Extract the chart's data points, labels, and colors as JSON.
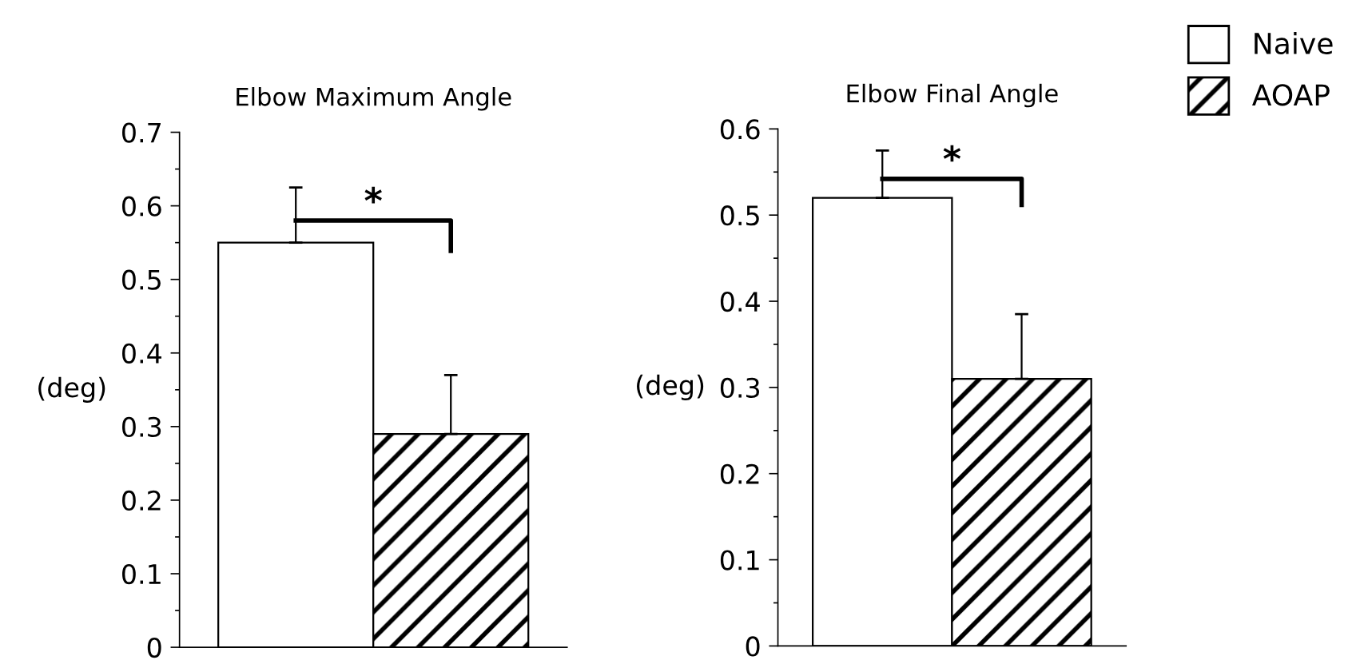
{
  "chart_data": [
    {
      "type": "bar",
      "title": "Elbow Maximum Angle",
      "ylabel": "(deg)",
      "categories": [
        null
      ],
      "series": [
        {
          "color": "#ffffff",
          "values": [
            0.55
          ],
          "errors": [
            [
              0.55,
              0.625
            ]
          ]
        },
        {
          "color": "#000000",
          "values": [
            0.29
          ],
          "errors": [
            [
              0.29,
              0.37
            ]
          ]
        }
      ],
      "ylim": [
        0,
        0.7
      ],
      "yticks": [
        0,
        0.1,
        0.2,
        0.3,
        0.4,
        0.5,
        0.6,
        0.7
      ],
      "grid": false,
      "annotations": [
        "*"
      ]
    },
    {
      "type": "bar",
      "title": "Elbow Final Angle",
      "ylabel": "(deg)",
      "categories": [
        null
      ],
      "series": [
        {
          "name": "Naive",
          "color": "#ffffff",
          "values": [
            0.52
          ],
          "errors": [
            [
              0.52,
              0.575
            ]
          ]
        },
        {
          "name": "AOAP",
          "color": "#000000",
          "values": [
            0.31
          ],
          "errors": [
            [
              0.31,
              0.385
            ]
          ]
        }
      ],
      "ylim": [
        0,
        0.6
      ],
      "yticks": [
        0,
        0.1,
        0.2,
        0.3,
        0.4,
        0.5,
        0.6
      ],
      "grid": false,
      "legend": "top right",
      "annotations": [
        "*"
      ]
    }
  ]
}
